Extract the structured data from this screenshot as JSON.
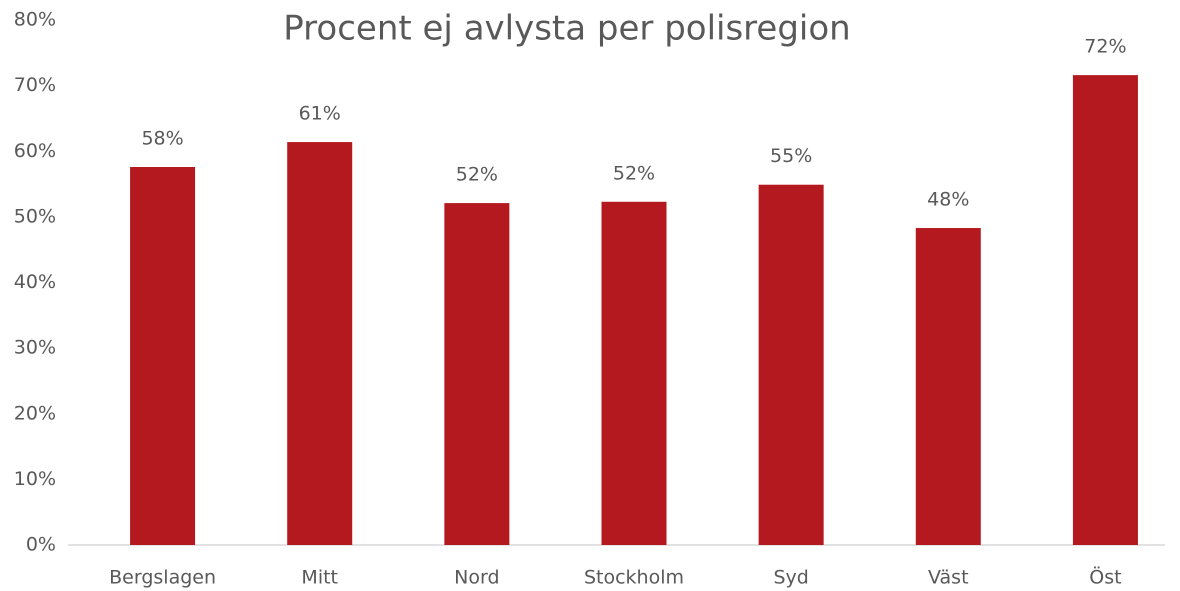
{
  "chart_data": {
    "type": "bar",
    "title": "Procent ej avlysta per polisregion",
    "categories": [
      "Bergslagen",
      "Mitt",
      "Nord",
      "Stockholm",
      "Syd",
      "Väst",
      "Öst"
    ],
    "values": [
      57.6,
      61.4,
      52.1,
      52.3,
      54.9,
      48.3,
      71.6
    ],
    "value_labels": [
      "58%",
      "61%",
      "52%",
      "52%",
      "55%",
      "48%",
      "72%"
    ],
    "color": "#b3191e",
    "ylim": [
      0,
      80
    ],
    "yticks": [
      {
        "value": 0,
        "label": "0%"
      },
      {
        "value": 10,
        "label": "10%"
      },
      {
        "value": 20,
        "label": "20%"
      },
      {
        "value": 30,
        "label": "30%"
      },
      {
        "value": 40,
        "label": "40%"
      },
      {
        "value": 50,
        "label": "50%"
      },
      {
        "value": 60,
        "label": "60%"
      },
      {
        "value": 70,
        "label": "70%"
      },
      {
        "value": 80,
        "label": "80%"
      }
    ],
    "grid": false
  }
}
